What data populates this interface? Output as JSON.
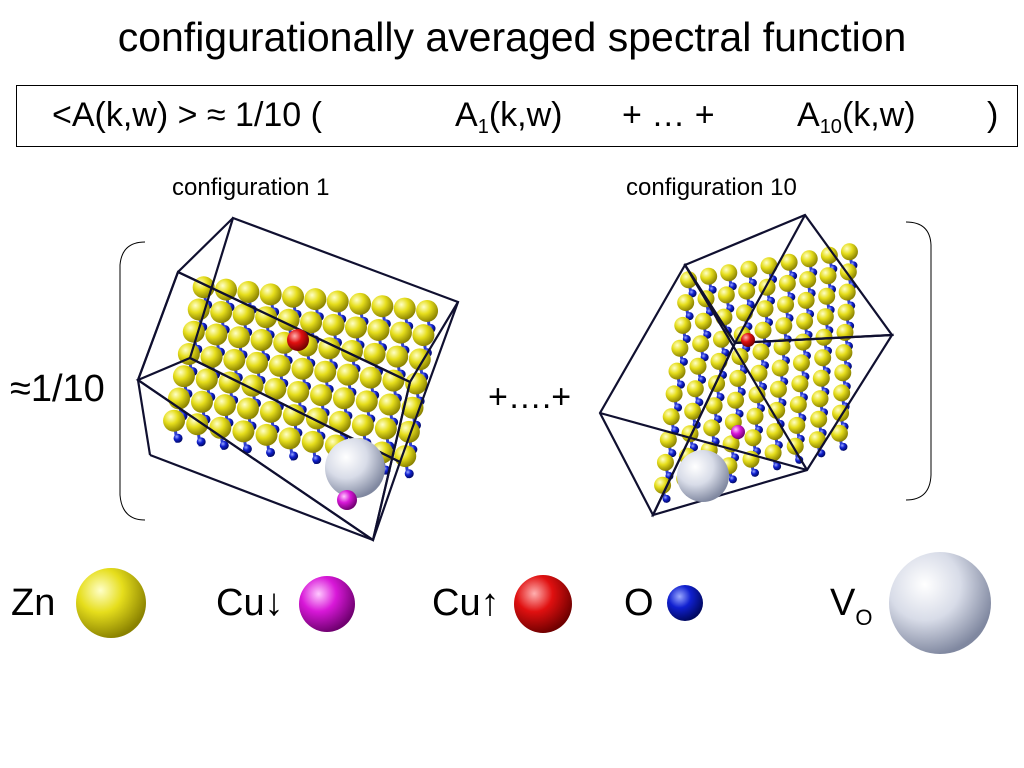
{
  "title": "configurationally averaged spectral function",
  "formula": {
    "lhs": "<A(k,w) > ≈ 1/10 (",
    "term1_base": "A",
    "term1_sub": "1",
    "term1_args": "(k,w)",
    "dots": "+ … +",
    "term2_base": "A",
    "term2_sub": "10",
    "term2_args": "(k,w)",
    "close": ")"
  },
  "configs": {
    "left_label": "configuration 1",
    "right_label": "configuration 10"
  },
  "approx_label": "≈1/10",
  "separator": "+….+",
  "legend": {
    "zn": {
      "label": "Zn",
      "color": "#e8e020"
    },
    "cu_down": {
      "label": "Cu↓",
      "color": "#d818d8"
    },
    "cu_up": {
      "label": "Cu↑",
      "color": "#e01010"
    },
    "o": {
      "label": "O",
      "color": "#1020d0"
    },
    "vo": {
      "label_base": "V",
      "label_sub": "O",
      "color": "#d8dce8"
    }
  }
}
